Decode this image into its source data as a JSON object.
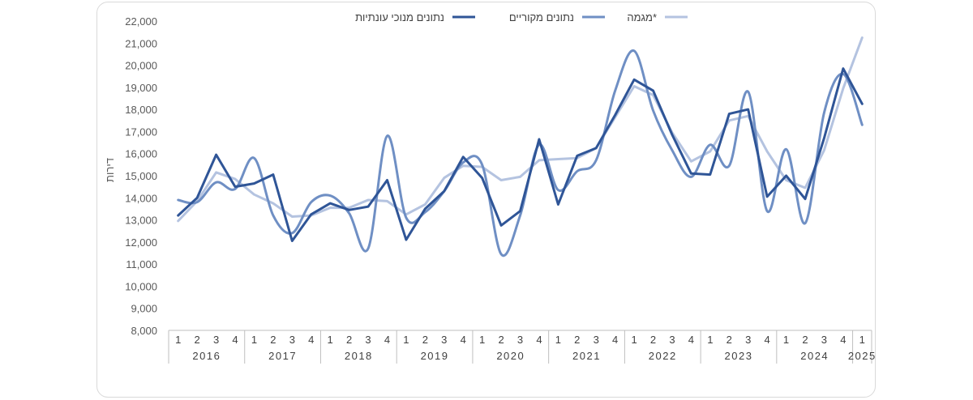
{
  "chart_data": {
    "type": "line",
    "title": "",
    "xlabel": "",
    "ylabel": "דירות",
    "ylim": [
      8000,
      22000
    ],
    "ytick_step": 1000,
    "yticks": [
      "8,000",
      "9,000",
      "10,000",
      "11,000",
      "12,000",
      "13,000",
      "14,000",
      "15,000",
      "16,000",
      "17,000",
      "18,000",
      "19,000",
      "20,000",
      "21,000",
      "22,000"
    ],
    "years": [
      "2016",
      "2017",
      "2018",
      "2019",
      "2020",
      "2021",
      "2022",
      "2023",
      "2024",
      "2025"
    ],
    "quarters": [
      "1",
      "2",
      "3",
      "4",
      "1",
      "2",
      "3",
      "4",
      "1",
      "2",
      "3",
      "4",
      "1",
      "2",
      "3",
      "4",
      "1",
      "2",
      "3",
      "4",
      "1",
      "2",
      "3",
      "4",
      "1",
      "2",
      "3",
      "4",
      "1",
      "2",
      "3",
      "4",
      "1",
      "2",
      "3",
      "4",
      "1"
    ],
    "grid": false,
    "legend_position": "top",
    "series": [
      {
        "name": "נתונים מנוכי עונתיות",
        "color": "#2f5597",
        "smooth": false,
        "values": [
          13200,
          14000,
          15950,
          14500,
          14650,
          15050,
          12050,
          13250,
          13750,
          13450,
          13600,
          14800,
          12100,
          13500,
          14300,
          15850,
          14900,
          12750,
          13400,
          16650,
          13700,
          15900,
          16250,
          17750,
          19350,
          18850,
          16850,
          15100,
          15050,
          17800,
          18000,
          14050,
          15000,
          13950,
          16700,
          19850,
          18250
        ]
      },
      {
        "name": "נתונים מקוריים",
        "color": "#6f8fc4",
        "smooth": true,
        "values": [
          13900,
          13800,
          14700,
          14400,
          15800,
          13200,
          12400,
          13800,
          14100,
          13300,
          11700,
          16800,
          13100,
          13350,
          14300,
          15600,
          15500,
          11450,
          13200,
          16400,
          14350,
          15200,
          15700,
          18850,
          20650,
          17950,
          16150,
          14950,
          16400,
          15450,
          18800,
          13400,
          16200,
          12850,
          17850,
          19600,
          17300
        ]
      },
      {
        "name": "מגמה*",
        "color": "#b4c3e0",
        "smooth": false,
        "values": [
          12950,
          13850,
          15150,
          14850,
          14150,
          13750,
          13150,
          13200,
          13550,
          13550,
          13900,
          13850,
          13250,
          13700,
          14900,
          15450,
          15400,
          14800,
          14950,
          15700,
          15750,
          15800,
          16250,
          17650,
          19050,
          18650,
          16950,
          15650,
          16100,
          17500,
          17700,
          16100,
          14800,
          14450,
          16150,
          18950,
          21250
        ]
      }
    ]
  }
}
